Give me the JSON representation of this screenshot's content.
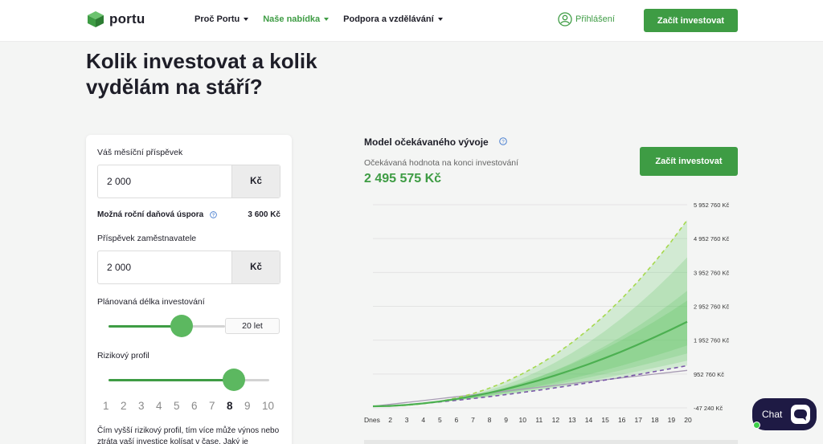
{
  "header": {
    "logo_text": "portu",
    "nav": [
      {
        "label": "Proč Portu",
        "active": false
      },
      {
        "label": "Naše nabídka",
        "active": true
      },
      {
        "label": "Podpora a vzdělávání",
        "active": false
      }
    ],
    "login_label": "Přihlášení",
    "cta_label": "Začít investovat"
  },
  "page": {
    "title": "Kolik investovat a kolik vydělám na stáří?"
  },
  "form": {
    "monthly_label": "Váš měsíční příspěvek",
    "monthly_value": "2 000",
    "monthly_unit": "Kč",
    "tax_label": "Možná roční daňová úspora",
    "tax_value": "3 600 Kč",
    "employer_label": "Příspěvek zaměstnavatele",
    "employer_value": "2 000",
    "employer_unit": "Kč",
    "duration_label": "Plánovaná délka investování",
    "duration_value": "20 let",
    "duration_fraction": 0.63,
    "risk_label": "Rizikový profil",
    "risk_levels": [
      "1",
      "2",
      "3",
      "4",
      "5",
      "6",
      "7",
      "8",
      "9",
      "10"
    ],
    "risk_selected": "8",
    "risk_fraction": 0.78,
    "risk_note": "Čím vyšší rizikový profil, tím více může výnos nebo ztráta vaší investice kolísat v čase. Jaký je"
  },
  "model": {
    "title": "Model očekávaného vývoje",
    "expected_label": "Očekávaná hodnota na konci investování",
    "expected_value": "2 495 575 Kč",
    "cta_label": "Začít investovat"
  },
  "chart_data": {
    "type": "area",
    "x_labels": [
      "Dnes",
      "2",
      "3",
      "4",
      "5",
      "6",
      "7",
      "8",
      "9",
      "10",
      "11",
      "12",
      "13",
      "14",
      "15",
      "16",
      "17",
      "18",
      "19",
      "20"
    ],
    "x_values": [
      1,
      2,
      3,
      4,
      5,
      6,
      7,
      8,
      9,
      10,
      11,
      12,
      13,
      14,
      15,
      16,
      17,
      18,
      19,
      20
    ],
    "y_ticks": [
      5952760,
      4952760,
      3952760,
      2952760,
      1952760,
      952760,
      -47240
    ],
    "y_tick_labels": [
      "5 952 760 Kč",
      "4 952 760 Kč",
      "3 952 760 Kč",
      "2 952 760 Kč",
      "1 952 760 Kč",
      "952 760 Kč",
      "-47 240 Kč"
    ],
    "ylim": [
      -47240,
      5952760
    ],
    "grid": true,
    "end_values": {
      "optimistic": 5500000,
      "expected": 2495575,
      "pessimistic": 1200000,
      "deposits": 1060000
    },
    "colors": {
      "band": "#5cc25f",
      "expected": "#4cb051",
      "optimistic": "#a6d94e",
      "pessimistic": "#7a57a8",
      "deposits": "#a89cb4"
    }
  },
  "chat": {
    "label": "Chat"
  }
}
